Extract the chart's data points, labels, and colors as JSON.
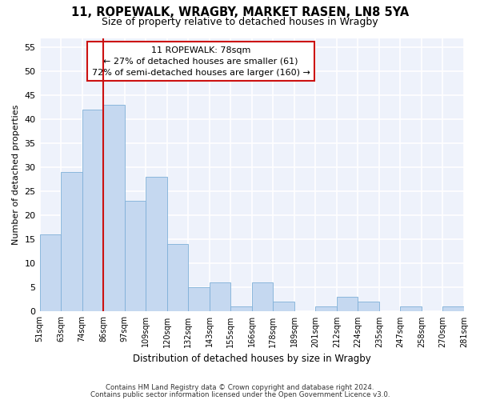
{
  "title1": "11, ROPEWALK, WRAGBY, MARKET RASEN, LN8 5YA",
  "title2": "Size of property relative to detached houses in Wragby",
  "xlabel": "Distribution of detached houses by size in Wragby",
  "ylabel": "Number of detached properties",
  "bar_values": [
    16,
    29,
    42,
    43,
    23,
    28,
    14,
    5,
    6,
    1,
    6,
    2,
    0,
    1,
    3,
    2,
    0,
    1,
    0,
    1
  ],
  "bin_edges": [
    "51sqm",
    "63sqm",
    "74sqm",
    "86sqm",
    "97sqm",
    "109sqm",
    "120sqm",
    "132sqm",
    "143sqm",
    "155sqm",
    "166sqm",
    "178sqm",
    "189sqm",
    "201sqm",
    "212sqm",
    "224sqm",
    "235sqm",
    "247sqm",
    "258sqm",
    "270sqm",
    "281sqm"
  ],
  "bar_color": "#c5d8f0",
  "bar_edge_color": "#7fb0d8",
  "background_color": "#eef2fb",
  "grid_color": "#ffffff",
  "annotation_text": "11 ROPEWALK: 78sqm\n← 27% of detached houses are smaller (61)\n72% of semi-detached houses are larger (160) →",
  "vline_color": "#cc1111",
  "ylim": [
    0,
    57
  ],
  "yticks": [
    0,
    5,
    10,
    15,
    20,
    25,
    30,
    35,
    40,
    45,
    50,
    55
  ],
  "vline_pos": 2,
  "footer1": "Contains HM Land Registry data © Crown copyright and database right 2024.",
  "footer2": "Contains public sector information licensed under the Open Government Licence v3.0."
}
